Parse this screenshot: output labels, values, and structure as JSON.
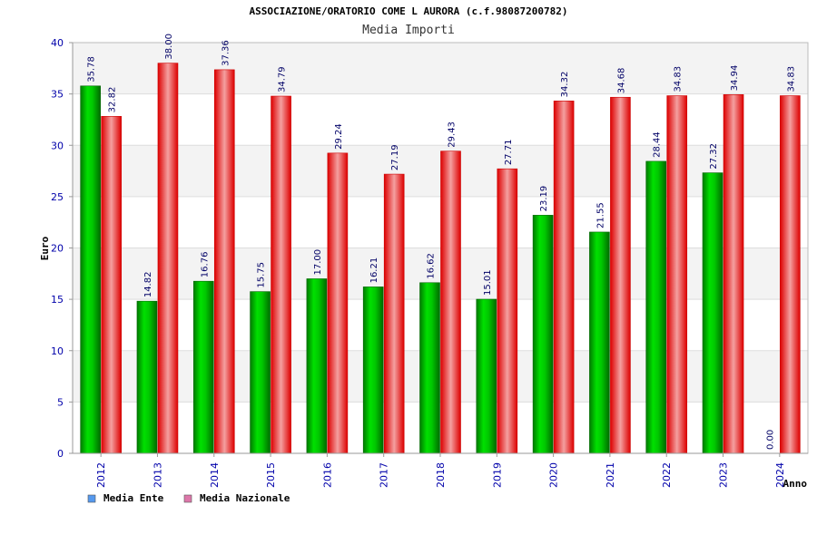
{
  "chart_data": {
    "type": "bar",
    "title": "ASSOCIAZIONE/ORATORIO COME L AURORA (c.f.98087200782)",
    "subtitle": "Media Importi",
    "xlabel": "Anno",
    "ylabel": "Euro",
    "ylim": [
      0,
      40
    ],
    "yticks": [
      0,
      5,
      10,
      15,
      20,
      25,
      30,
      35,
      40
    ],
    "categories": [
      "2012",
      "2013",
      "2014",
      "2015",
      "2016",
      "2017",
      "2018",
      "2019",
      "2020",
      "2021",
      "2022",
      "2023",
      "2024"
    ],
    "series": [
      {
        "name": "Media Ente",
        "values": [
          35.78,
          14.82,
          16.76,
          15.75,
          17.0,
          16.21,
          16.62,
          15.01,
          23.19,
          21.55,
          28.44,
          27.32,
          0.0
        ],
        "labels": [
          "35.78",
          "14.82",
          "16.76",
          "15.75",
          "17.00",
          "16.21",
          "16.62",
          "15.01",
          "23.19",
          "21.55",
          "28.44",
          "27.32",
          "0.00"
        ],
        "color": "#00cc00"
      },
      {
        "name": "Media Nazionale",
        "values": [
          32.82,
          38.0,
          37.36,
          34.79,
          29.24,
          27.19,
          29.43,
          27.71,
          34.32,
          34.68,
          34.83,
          34.94,
          34.83
        ],
        "labels": [
          "32.82",
          "38.00",
          "37.36",
          "34.79",
          "29.24",
          "27.19",
          "29.43",
          "27.71",
          "34.32",
          "34.68",
          "34.83",
          "34.94",
          "34.83"
        ],
        "color": "#ee2222"
      }
    ],
    "legend": {
      "placement": "bottom-left",
      "items": [
        {
          "label": "Media Ente",
          "swatch_color": "#5599ee"
        },
        {
          "label": "Media Nazionale",
          "swatch_color": "#dd77aa"
        }
      ]
    },
    "grid": true,
    "band_colors": [
      "#f3f3f3",
      "#ffffff"
    ]
  }
}
